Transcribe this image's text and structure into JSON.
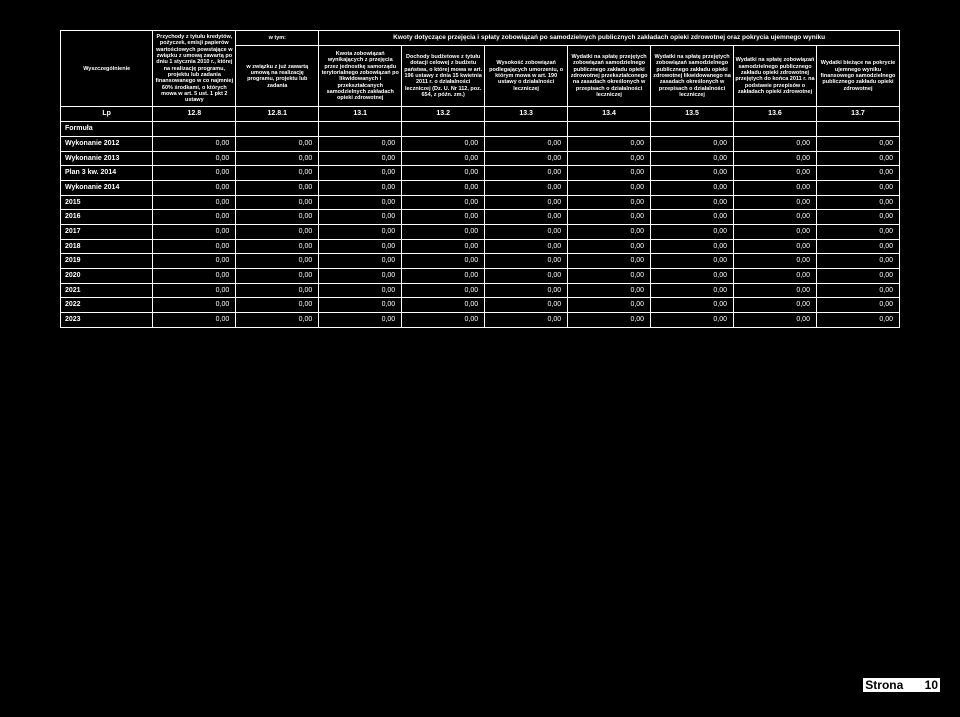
{
  "group_header": "Kwoty dotyczące przejęcia i spłaty zobowiązań po samodzielnych publicznych zakładach opieki zdrowotnej oraz pokrycia ujemnego wyniku",
  "col0": "Wyszczególnienie",
  "col1": "Przychody z tytułu kredytów, pożyczek, emisji papierów wartościowych powstające w związku z umową zawartą po dniu 1 stycznia 2010 r., której na realizację programu, projektu lub zadania finansowanego w co najmniej 60% środkami, o których mowa w art. 5 ust. 1 pkt 2 ustawy",
  "col2_top": "w tym:",
  "col2": "w związku z już zawartą umową na realizację programu, projektu lub zadania",
  "col3": "Kwota zobowiązań wynikających z przejęcia przez jednostkę samorządu terytorialnego zobowiązań po likwidowanych i przekształcanych samodzielnych zakładach opieki zdrowotnej",
  "col4": "Dochody budżetowe z tytułu dotacji celowej z budżetu państwa, o której mowa w art. 196 ustawy z dnia 15 kwietnia 2011 r. o działalności leczniczej (Dz. U. Nr 112, poz. 654, z późn. zm.)",
  "col5": "Wysokość zobowiązań podlegających umorzeniu, o którym mowa w art. 190 ustawy o działalności leczniczej",
  "col6": "Wydatki na spłatę przejętych zobowiązań samodzielnego publicznego zakładu opieki zdrowotnej przekształconego na zasadach określonych w przepisach o działalności leczniczej",
  "col7": "Wydatki na spłatę przejętych zobowiązań samodzielnego publicznego zakładu opieki zdrowotnej likwidowanego na zasadach określonych w przepisach o działalności leczniczej",
  "col8": "Wydatki na spłatę zobowiązań samodzielnego publicznego zakładu opieki zdrowotnej przejętych do końca 2011 r. na podstawie przepisów o zakładach opieki zdrowotnej",
  "col9": "Wydatki bieżące na pokrycie ujemnego wyniku finansowego samodzielnego publicznego zakładu opieki zdrowotnej",
  "lp": "Lp",
  "nums": [
    "12.8",
    "12.8.1",
    "13.1",
    "13.2",
    "13.3",
    "13.4",
    "13.5",
    "13.6",
    "13.7"
  ],
  "formula_label": "Formuła",
  "rows": [
    {
      "label": "Wykonanie 2012",
      "v": [
        "0,00",
        "0,00",
        "0,00",
        "0,00",
        "0,00",
        "0,00",
        "0,00",
        "0,00",
        "0,00"
      ]
    },
    {
      "label": "Wykonanie 2013",
      "v": [
        "0,00",
        "0,00",
        "0,00",
        "0,00",
        "0,00",
        "0,00",
        "0,00",
        "0,00",
        "0,00"
      ]
    },
    {
      "label": "Plan 3 kw. 2014",
      "v": [
        "0,00",
        "0,00",
        "0,00",
        "0,00",
        "0,00",
        "0,00",
        "0,00",
        "0,00",
        "0,00"
      ]
    },
    {
      "label": "Wykonanie 2014",
      "v": [
        "0,00",
        "0,00",
        "0,00",
        "0,00",
        "0,00",
        "0,00",
        "0,00",
        "0,00",
        "0,00"
      ]
    },
    {
      "label": "2015",
      "v": [
        "0,00",
        "0,00",
        "0,00",
        "0,00",
        "0,00",
        "0,00",
        "0,00",
        "0,00",
        "0,00"
      ]
    },
    {
      "label": "2016",
      "v": [
        "0,00",
        "0,00",
        "0,00",
        "0,00",
        "0,00",
        "0,00",
        "0,00",
        "0,00",
        "0,00"
      ]
    },
    {
      "label": "2017",
      "v": [
        "0,00",
        "0,00",
        "0,00",
        "0,00",
        "0,00",
        "0,00",
        "0,00",
        "0,00",
        "0,00"
      ]
    },
    {
      "label": "2018",
      "v": [
        "0,00",
        "0,00",
        "0,00",
        "0,00",
        "0,00",
        "0,00",
        "0,00",
        "0,00",
        "0,00"
      ]
    },
    {
      "label": "2019",
      "v": [
        "0,00",
        "0,00",
        "0,00",
        "0,00",
        "0,00",
        "0,00",
        "0,00",
        "0,00",
        "0,00"
      ]
    },
    {
      "label": "2020",
      "v": [
        "0,00",
        "0,00",
        "0,00",
        "0,00",
        "0,00",
        "0,00",
        "0,00",
        "0,00",
        "0,00"
      ]
    },
    {
      "label": "2021",
      "v": [
        "0,00",
        "0,00",
        "0,00",
        "0,00",
        "0,00",
        "0,00",
        "0,00",
        "0,00",
        "0,00"
      ]
    },
    {
      "label": "2022",
      "v": [
        "0,00",
        "0,00",
        "0,00",
        "0,00",
        "0,00",
        "0,00",
        "0,00",
        "0,00",
        "0,00"
      ]
    },
    {
      "label": "2023",
      "v": [
        "0,00",
        "0,00",
        "0,00",
        "0,00",
        "0,00",
        "0,00",
        "0,00",
        "0,00",
        "0,00"
      ]
    }
  ],
  "footer_label": "Strona",
  "footer_page": "10"
}
